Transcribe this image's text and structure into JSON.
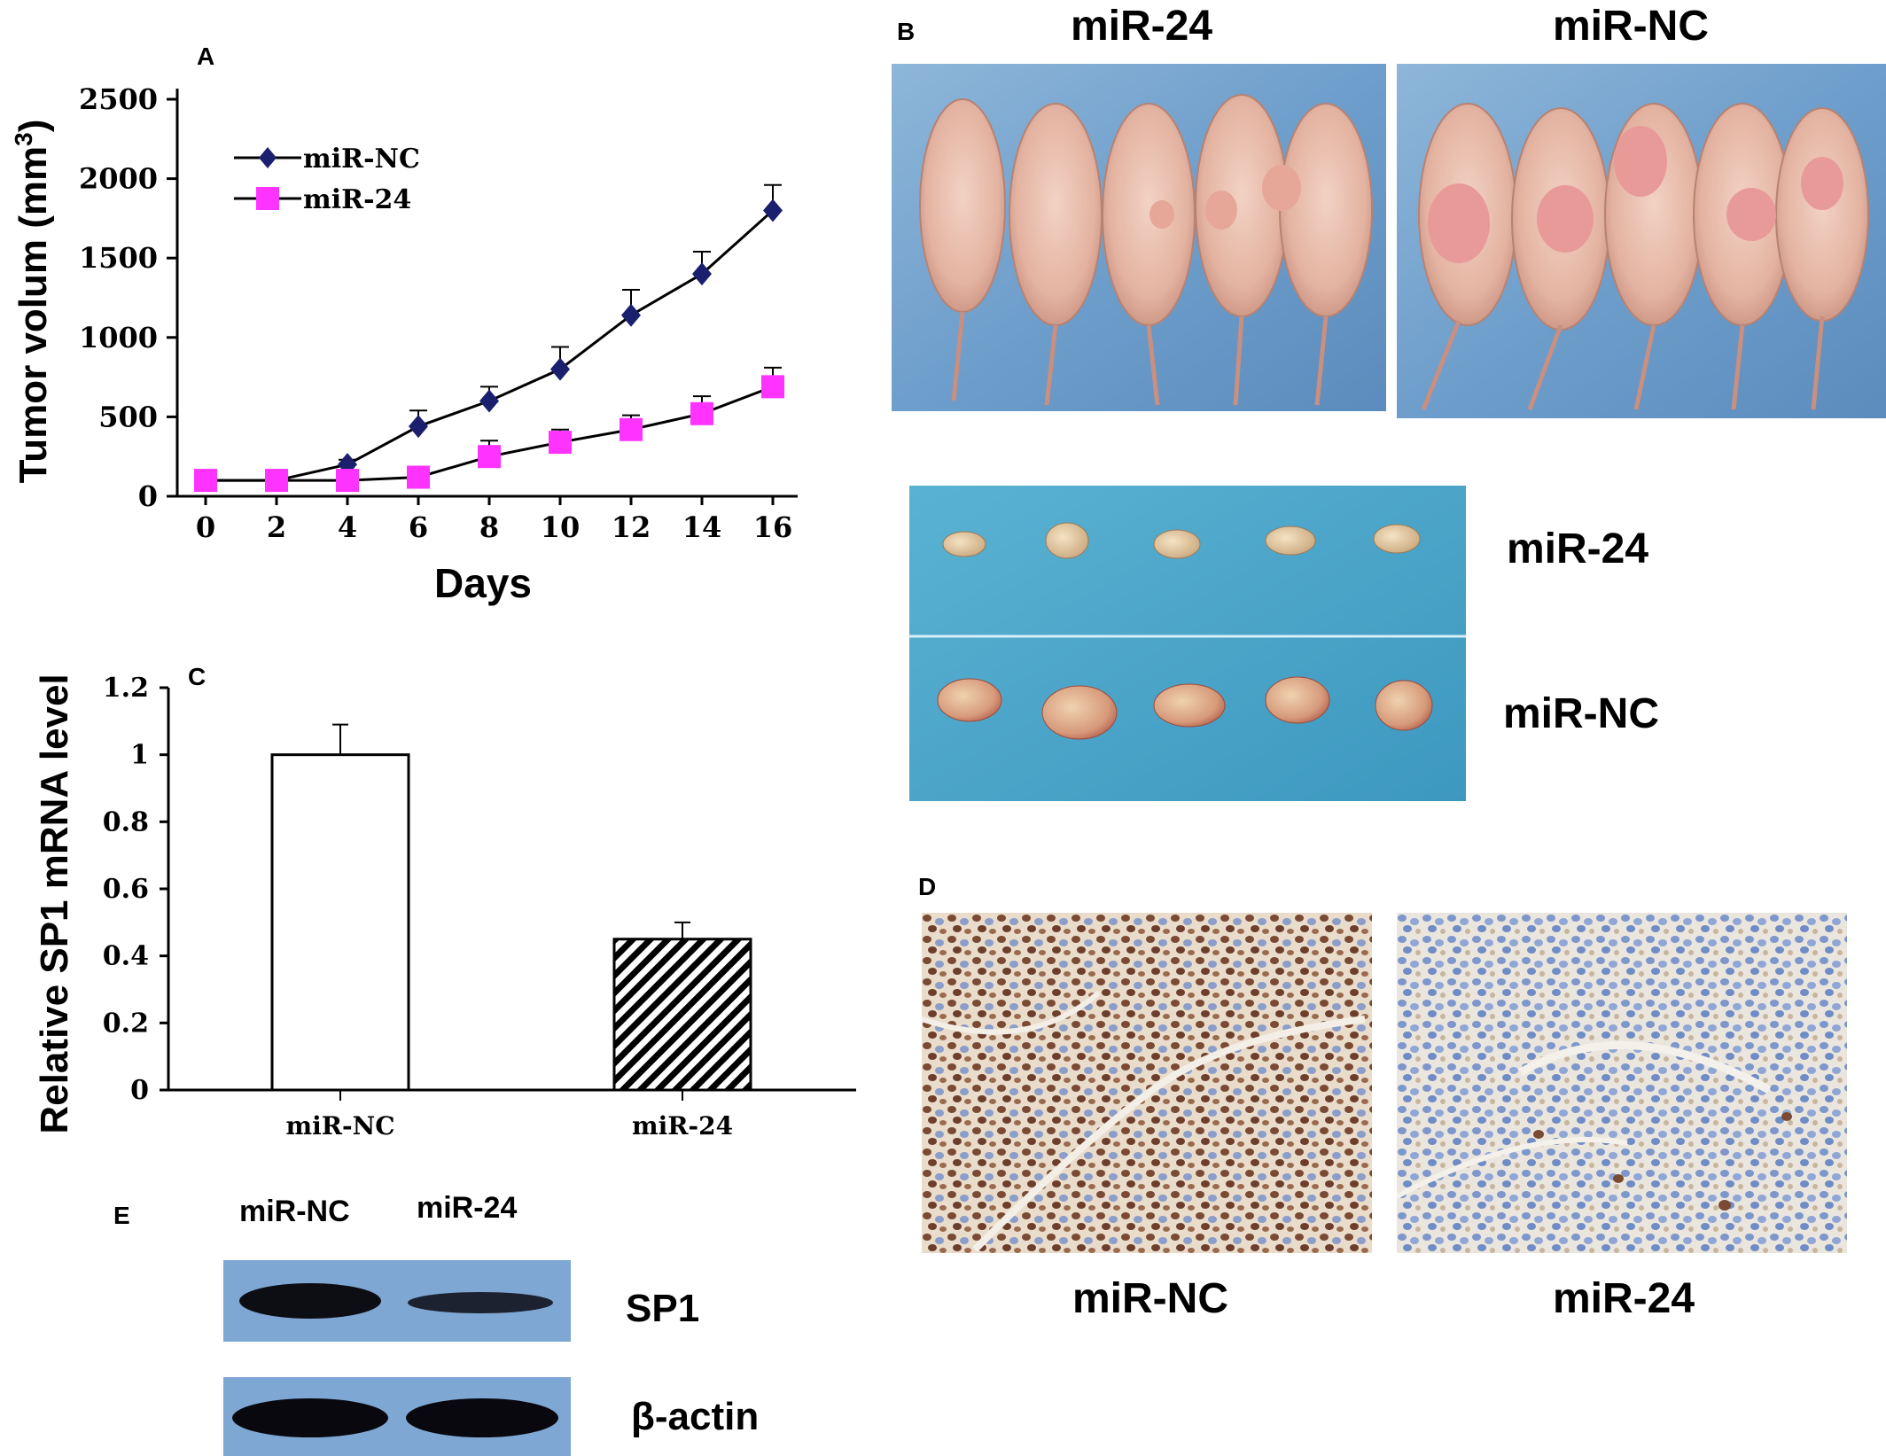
{
  "panels": {
    "a": "A",
    "b": "B",
    "c": "C",
    "d": "D",
    "e": "E"
  },
  "chart_data": [
    {
      "type": "line",
      "panel": "A",
      "xlabel": "Days",
      "ylabel_main": "Tumor volum (mm",
      "ylabel_sup": "3",
      "ylabel_end": ")",
      "x": [
        0,
        2,
        4,
        6,
        8,
        10,
        12,
        14,
        16
      ],
      "xlim": [
        0,
        17.5
      ],
      "ylim": [
        0,
        2500
      ],
      "yticks": [
        0,
        500,
        1000,
        1500,
        2000,
        2500
      ],
      "grid": false,
      "legend_position": "top-left",
      "series": [
        {
          "name": "miR-NC",
          "marker": "diamond",
          "color": "#1a1f6e",
          "values": [
            100,
            100,
            200,
            440,
            600,
            800,
            1140,
            1400,
            1800
          ],
          "errors": [
            0,
            0,
            30,
            100,
            90,
            140,
            160,
            140,
            160
          ]
        },
        {
          "name": "miR-24",
          "marker": "square",
          "color": "#ff33ff",
          "values": [
            100,
            100,
            100,
            120,
            250,
            340,
            420,
            520,
            690
          ],
          "errors": [
            0,
            0,
            0,
            40,
            100,
            80,
            90,
            110,
            120
          ]
        }
      ]
    },
    {
      "type": "bar",
      "panel": "C",
      "ylabel": "Relative SP1 mRNA level",
      "categories": [
        "miR-NC",
        "miR-24"
      ],
      "values": [
        1.0,
        0.45
      ],
      "errors": [
        0.09,
        0.05
      ],
      "ylim": [
        0,
        1.2
      ],
      "yticks": [
        "0",
        "0.2",
        "0.4",
        "0.6",
        "0.8",
        "1",
        "1.2"
      ],
      "fills": [
        "open",
        "hatched"
      ],
      "grid": false
    }
  ],
  "panel_b": {
    "mice_left_label": "miR-24",
    "mice_right_label": "miR-NC",
    "tumor_row1_label": "miR-24",
    "tumor_row2_label": "miR-NC"
  },
  "panel_d": {
    "left_label": "miR-NC",
    "right_label": "miR-24"
  },
  "panel_e": {
    "lane1": "miR-NC",
    "lane2": "miR-24",
    "band1": "SP1",
    "band2": "β-actin"
  },
  "colors": {
    "mat_blue": "#6f9fc9",
    "tumor_bg": "#4da6c8",
    "mouse_pink": "#e8b9a6",
    "ihc_bg": "#efe9df",
    "blot_bg": "#7fa7d3"
  }
}
